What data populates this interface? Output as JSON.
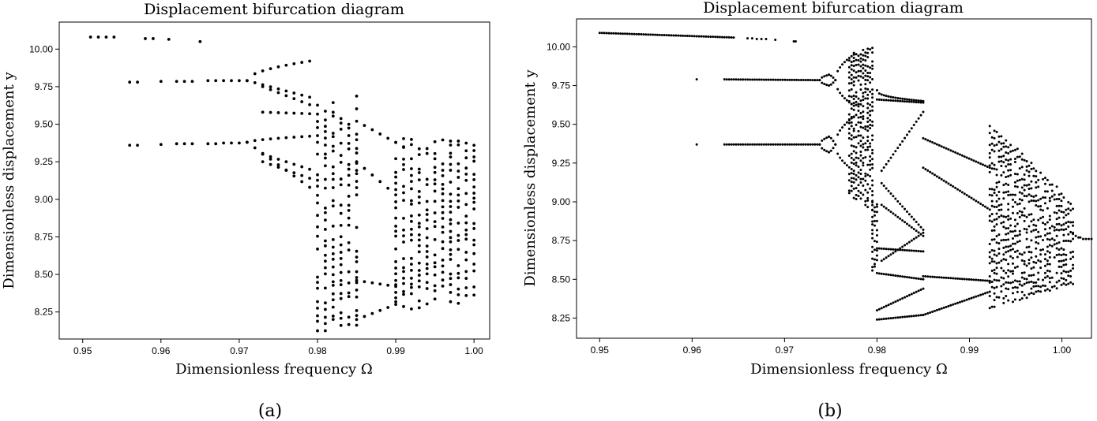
{
  "chart_data": [
    {
      "type": "scatter",
      "panel_caption": "(a)",
      "title": "Displacement bifurcation diagram",
      "xlabel": "Dimensionless frequency Ω",
      "ylabel": "Dimensionless displacement y",
      "xlim": [
        0.947,
        1.002
      ],
      "ylim": [
        8.07,
        10.18
      ],
      "xticks": [
        0.95,
        0.96,
        0.97,
        0.98,
        0.99,
        1.0
      ],
      "xtick_labels": [
        "0.95",
        "0.96",
        "0.97",
        "0.98",
        "0.99",
        "1.00"
      ],
      "yticks": [
        8.25,
        8.5,
        8.75,
        9.0,
        9.25,
        9.5,
        9.75,
        10.0
      ],
      "ytick_labels": [
        "8.25",
        "8.50",
        "8.75",
        "9.00",
        "9.25",
        "9.50",
        "9.75",
        "10.00"
      ],
      "grid": false,
      "x_step": 0.001,
      "branches": [
        {
          "points": [
            [
              0.951,
              10.08
            ],
            [
              0.952,
              10.08
            ],
            [
              0.953,
              10.08
            ],
            [
              0.954,
              10.08
            ],
            [
              0.958,
              10.07
            ],
            [
              0.959,
              10.07
            ],
            [
              0.961,
              10.065
            ],
            [
              0.965,
              10.05
            ]
          ]
        },
        {
          "points": [
            [
              0.956,
              9.78
            ],
            [
              0.957,
              9.78
            ],
            [
              0.96,
              9.785
            ],
            [
              0.962,
              9.785
            ],
            [
              0.963,
              9.785
            ],
            [
              0.964,
              9.785
            ],
            [
              0.966,
              9.79
            ],
            [
              0.967,
              9.79
            ],
            [
              0.968,
              9.79
            ],
            [
              0.969,
              9.79
            ],
            [
              0.97,
              9.79
            ],
            [
              0.971,
              9.79
            ]
          ]
        },
        {
          "points": [
            [
              0.956,
              9.36
            ],
            [
              0.957,
              9.36
            ],
            [
              0.96,
              9.365
            ],
            [
              0.962,
              9.37
            ],
            [
              0.963,
              9.37
            ],
            [
              0.964,
              9.37
            ],
            [
              0.966,
              9.37
            ],
            [
              0.967,
              9.37
            ],
            [
              0.968,
              9.375
            ],
            [
              0.969,
              9.375
            ],
            [
              0.97,
              9.375
            ],
            [
              0.971,
              9.38
            ]
          ]
        },
        {
          "x0": 0.971,
          "x1": 0.979,
          "y0": 9.79,
          "y1": 9.92,
          "curve": 0.5
        },
        {
          "x0": 0.971,
          "x1": 0.979,
          "y0": 9.79,
          "y1": 9.68,
          "curve": 1.0
        },
        {
          "x0": 0.971,
          "x1": 0.979,
          "y0": 9.38,
          "y1": 9.42,
          "curve": 0.6
        },
        {
          "x0": 0.971,
          "x1": 0.979,
          "y0": 9.38,
          "y1": 9.08,
          "curve": 1.0
        },
        {
          "x0": 0.973,
          "x1": 0.979,
          "y0": 9.75,
          "y1": 9.63,
          "curve": 1.0
        },
        {
          "x0": 0.973,
          "x1": 0.979,
          "y0": 9.58,
          "y1": 9.57,
          "curve": 1.0
        },
        {
          "x0": 0.973,
          "x1": 0.979,
          "y0": 9.3,
          "y1": 9.2,
          "curve": 1.0
        },
        {
          "x0": 0.973,
          "x1": 0.979,
          "y0": 9.25,
          "y1": 9.14,
          "curve": 1.0
        },
        {
          "x0": 0.985,
          "x1": 0.991,
          "y0": 9.52,
          "y1": 9.35,
          "curve": 1.0
        },
        {
          "x0": 0.985,
          "x1": 0.99,
          "y0": 9.25,
          "y1": 9.03,
          "curve": 1.0
        },
        {
          "x0": 0.985,
          "x1": 0.99,
          "y0": 8.46,
          "y1": 8.42,
          "curve": 1.0
        },
        {
          "x0": 0.985,
          "x1": 0.99,
          "y0": 8.2,
          "y1": 8.3,
          "curve": 1.0
        }
      ],
      "chaotic_bands": [
        {
          "x0": 0.98,
          "x1": 0.985,
          "y_min": [
            8.13,
            8.17
          ],
          "y_max": [
            9.65,
            9.7
          ],
          "dy": 0.045
        },
        {
          "x0": 0.99,
          "x1": 1.0,
          "y_min": [
            8.27,
            8.33
          ],
          "y_max": [
            9.4,
            9.42
          ],
          "dy": 0.04
        }
      ]
    },
    {
      "type": "scatter",
      "panel_caption": "(b)",
      "title": "Displacement bifurcation diagram",
      "xlabel": "Dimensionless frequency Ω",
      "ylabel": "Dimensionless displacement y",
      "xlim": [
        0.9475,
        1.0032
      ],
      "ylim": [
        8.12,
        10.18
      ],
      "xticks": [
        0.95,
        0.96,
        0.97,
        0.98,
        0.99,
        1.0
      ],
      "xtick_labels": [
        "0.95",
        "0.96",
        "0.97",
        "0.98",
        "0.99",
        "1.00"
      ],
      "yticks": [
        8.25,
        8.5,
        8.75,
        9.0,
        9.25,
        9.5,
        9.75,
        10.0
      ],
      "ytick_labels": [
        "8.25",
        "8.50",
        "8.75",
        "9.00",
        "9.25",
        "9.50",
        "9.75",
        "10.00"
      ],
      "grid": false,
      "x_step": 0.00025,
      "branches": [
        {
          "x0": 0.95,
          "x1": 0.9645,
          "y0": 10.09,
          "y1": 10.06,
          "curve": 1.0
        },
        {
          "points": [
            [
              0.966,
              10.055
            ],
            [
              0.9665,
              10.055
            ],
            [
              0.967,
              10.05
            ],
            [
              0.9675,
              10.05
            ],
            [
              0.968,
              10.05
            ],
            [
              0.969,
              10.045
            ],
            [
              0.971,
              10.035
            ],
            [
              0.9712,
              10.035
            ]
          ]
        },
        {
          "points": [
            [
              0.9605,
              9.79
            ],
            [
              0.9605,
              9.37
            ]
          ]
        },
        {
          "x0": 0.9635,
          "x1": 0.9738,
          "y0": 9.79,
          "y1": 9.785,
          "curve": 1.0
        },
        {
          "x0": 0.9635,
          "x1": 0.9738,
          "y0": 9.37,
          "y1": 9.37,
          "curve": 1.0
        },
        {
          "x0": 0.9738,
          "x1": 0.9748,
          "y0": 9.785,
          "y1": 9.82,
          "curve": 0.5
        },
        {
          "x0": 0.9738,
          "x1": 0.9748,
          "y0": 9.785,
          "y1": 9.75,
          "curve": 0.5
        },
        {
          "x0": 0.9748,
          "x1": 0.9755,
          "y0": 9.82,
          "y1": 9.785,
          "curve": 1.5
        },
        {
          "x0": 0.9748,
          "x1": 0.9755,
          "y0": 9.75,
          "y1": 9.785,
          "curve": 1.5
        },
        {
          "x0": 0.9738,
          "x1": 0.9748,
          "y0": 9.37,
          "y1": 9.42,
          "curve": 0.5
        },
        {
          "x0": 0.9738,
          "x1": 0.9748,
          "y0": 9.37,
          "y1": 9.32,
          "curve": 0.5
        },
        {
          "x0": 0.9748,
          "x1": 0.9755,
          "y0": 9.42,
          "y1": 9.37,
          "curve": 1.5
        },
        {
          "x0": 0.9748,
          "x1": 0.9755,
          "y0": 9.32,
          "y1": 9.37,
          "curve": 1.5
        },
        {
          "x0": 0.9755,
          "x1": 0.9775,
          "y0": 9.785,
          "y1": 9.95,
          "curve": 0.5
        },
        {
          "x0": 0.9755,
          "x1": 0.9775,
          "y0": 9.785,
          "y1": 9.62,
          "curve": 0.5
        },
        {
          "x0": 0.9755,
          "x1": 0.9775,
          "y0": 9.37,
          "y1": 9.55,
          "curve": 0.5
        },
        {
          "x0": 0.9755,
          "x1": 0.9775,
          "y0": 9.37,
          "y1": 9.2,
          "curve": 0.5
        },
        {
          "x0": 0.98,
          "x1": 0.985,
          "y0": 9.72,
          "y1": 9.65,
          "curve": 0.4
        },
        {
          "x0": 0.98,
          "x1": 0.985,
          "y0": 9.66,
          "y1": 9.64,
          "curve": 1.0
        },
        {
          "x0": 0.9805,
          "x1": 0.985,
          "y0": 9.2,
          "y1": 9.58,
          "curve": 1.0
        },
        {
          "x0": 0.9805,
          "x1": 0.985,
          "y0": 9.12,
          "y1": 8.82,
          "curve": 1.0
        },
        {
          "x0": 0.9805,
          "x1": 0.985,
          "y0": 8.98,
          "y1": 8.78,
          "curve": 1.0
        },
        {
          "x0": 0.9805,
          "x1": 0.985,
          "y0": 8.62,
          "y1": 8.8,
          "curve": 1.0
        },
        {
          "x0": 0.98,
          "x1": 0.985,
          "y0": 8.7,
          "y1": 8.68,
          "curve": 1.0
        },
        {
          "x0": 0.98,
          "x1": 0.985,
          "y0": 8.54,
          "y1": 8.5,
          "curve": 1.0
        },
        {
          "x0": 0.98,
          "x1": 0.985,
          "y0": 8.3,
          "y1": 8.44,
          "curve": 1.0
        },
        {
          "x0": 0.98,
          "x1": 0.985,
          "y0": 8.24,
          "y1": 8.27,
          "curve": 1.0
        },
        {
          "x0": 0.985,
          "x1": 0.9922,
          "y0": 9.41,
          "y1": 9.22,
          "curve": 1.0
        },
        {
          "x0": 0.985,
          "x1": 0.9922,
          "y0": 9.22,
          "y1": 8.95,
          "curve": 1.0
        },
        {
          "x0": 0.985,
          "x1": 0.9922,
          "y0": 8.52,
          "y1": 8.49,
          "curve": 1.0
        },
        {
          "x0": 0.985,
          "x1": 0.9922,
          "y0": 8.27,
          "y1": 8.42,
          "curve": 1.0
        },
        {
          "points": [
            [
              1.0012,
              8.8
            ],
            [
              1.0015,
              8.78
            ],
            [
              1.0018,
              8.77
            ],
            [
              1.002,
              8.77
            ],
            [
              1.0023,
              8.76
            ],
            [
              1.0026,
              8.76
            ],
            [
              1.0029,
              8.76
            ],
            [
              1.0032,
              8.76
            ]
          ]
        }
      ],
      "chaotic_bands": [
        {
          "x0": 0.977,
          "x1": 0.9795,
          "y_min": [
            9.05,
            8.95
          ],
          "y_max": [
            9.95,
            10.0
          ],
          "dy": 0.03
        },
        {
          "x0": 0.9795,
          "x1": 0.98,
          "y_min": [
            8.55,
            8.6
          ],
          "y_max": [
            9.0,
            9.0
          ],
          "dy": 0.03
        },
        {
          "x0": 0.9922,
          "x1": 1.0012,
          "y_min": [
            8.32,
            8.48
          ],
          "y_max": [
            9.5,
            9.0
          ],
          "dy": 0.04
        }
      ]
    }
  ]
}
